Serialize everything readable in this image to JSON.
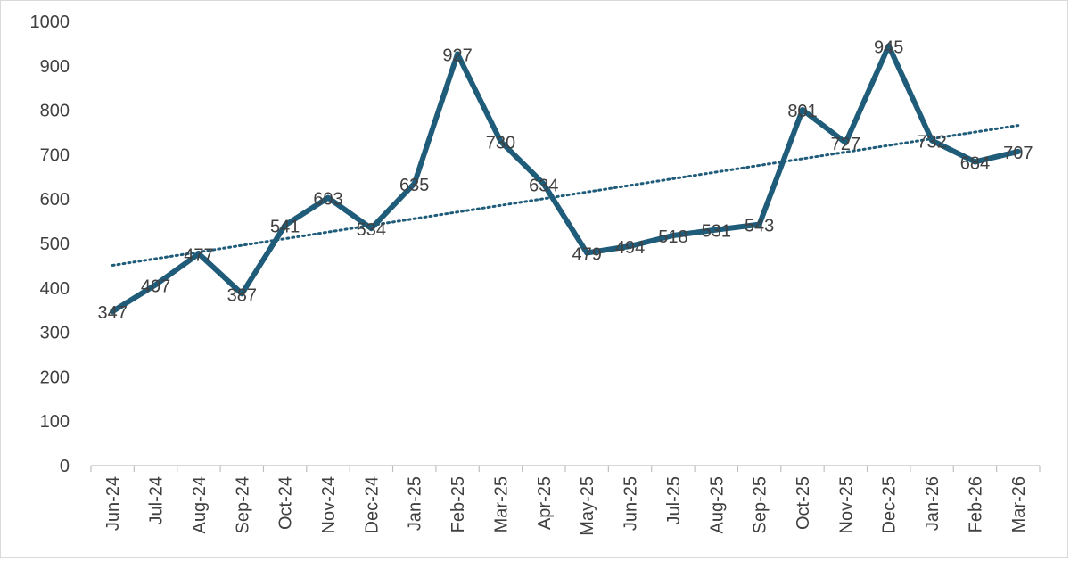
{
  "chart_data": {
    "type": "line",
    "title": "",
    "xlabel": "",
    "ylabel": "",
    "categories": [
      "Jun-24",
      "Jul-24",
      "Aug-24",
      "Sep-24",
      "Oct-24",
      "Nov-24",
      "Dec-24",
      "Jan-25",
      "Feb-25",
      "Mar-25",
      "Apr-25",
      "May-25",
      "Jun-25",
      "Jul-25",
      "Aug-25",
      "Sep-25",
      "Oct-25",
      "Nov-25",
      "Dec-25",
      "Jan-26",
      "Feb-26",
      "Mar-26"
    ],
    "series": [
      {
        "values": [
          347,
          407,
          477,
          387,
          541,
          603,
          534,
          635,
          927,
          730,
          634,
          479,
          494,
          518,
          531,
          543,
          801,
          727,
          945,
          732,
          684,
          707
        ],
        "data_labels": [
          "347",
          "407",
          "477",
          "387",
          "541",
          "603",
          "534",
          "635",
          "927",
          "730",
          "634",
          "479",
          "494",
          "518",
          "531",
          "543",
          "801",
          "727",
          "945",
          "732",
          "684",
          "707"
        ],
        "color": "#1f5c7a",
        "style": "solid"
      }
    ],
    "trendline": {
      "type": "linear",
      "style": "dotted",
      "color": "#1f5c7a"
    },
    "ylim": [
      0,
      1000
    ],
    "yticks": [
      "0",
      "100",
      "200",
      "300",
      "400",
      "500",
      "600",
      "700",
      "800",
      "900",
      "1000"
    ],
    "grid": false,
    "legend": "none"
  }
}
